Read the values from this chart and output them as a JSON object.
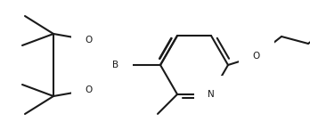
{
  "bg_color": "#ffffff",
  "line_color": "#1a1a1a",
  "line_width": 1.5,
  "font_size": 7.5,
  "figsize": [
    3.48,
    1.46
  ],
  "dpi": 100,
  "xlim": [
    0,
    348
  ],
  "ylim": [
    0,
    146
  ]
}
